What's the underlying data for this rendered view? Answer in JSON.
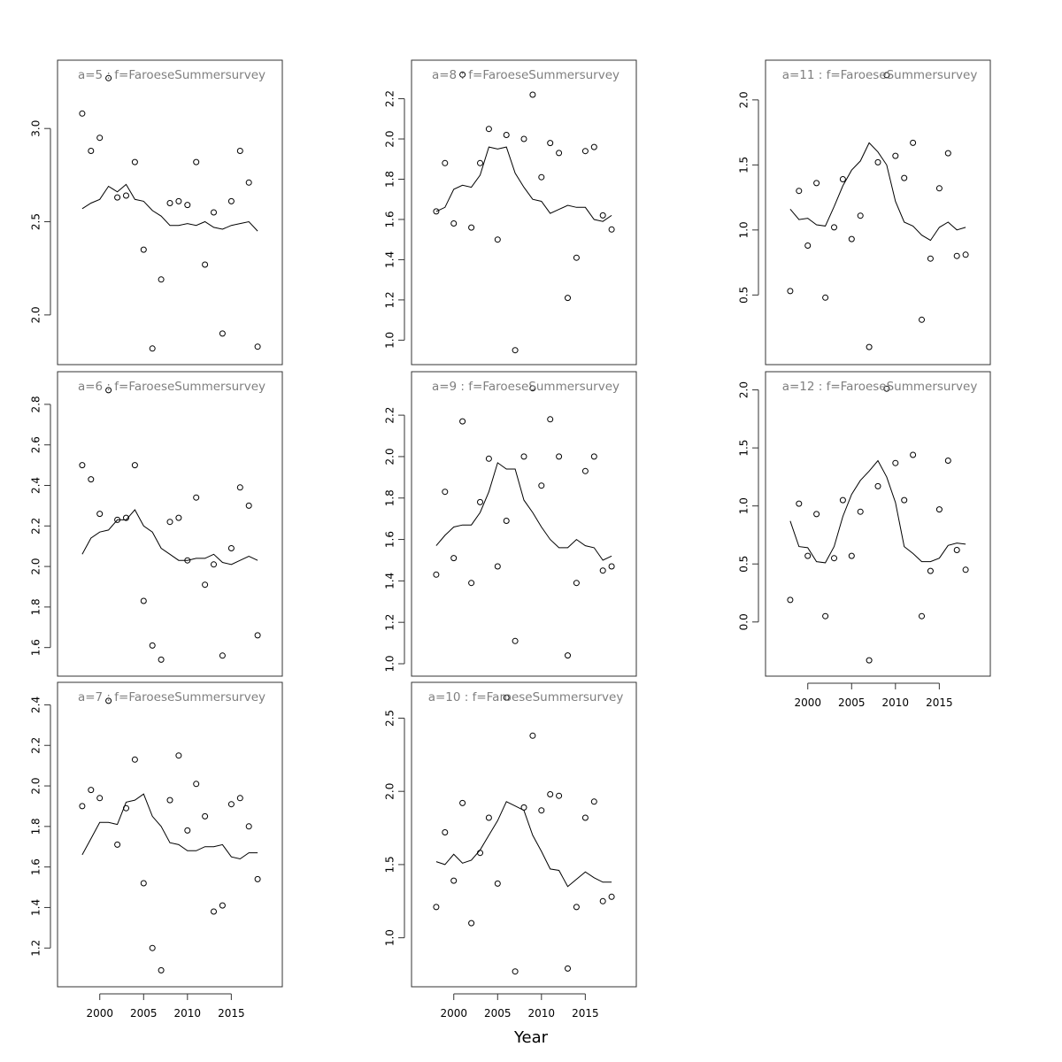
{
  "figure": {
    "xlabel": "Year"
  },
  "chart_data": [
    {
      "type": "scatter",
      "title": "a=5 : f=FaroeseSummersurvey",
      "x": [
        1998,
        1999,
        2000,
        2001,
        2002,
        2003,
        2004,
        2005,
        2006,
        2007,
        2008,
        2009,
        2010,
        2011,
        2012,
        2013,
        2014,
        2015,
        2016,
        2017,
        2018
      ],
      "observed": [
        3.08,
        2.88,
        2.95,
        3.27,
        2.63,
        2.64,
        2.82,
        2.35,
        1.82,
        2.19,
        2.6,
        2.61,
        2.59,
        2.82,
        2.27,
        2.55,
        1.9,
        2.61,
        2.88,
        2.71,
        1.83
      ],
      "fitted": [
        2.57,
        2.6,
        2.62,
        2.69,
        2.66,
        2.7,
        2.62,
        2.61,
        2.56,
        2.53,
        2.48,
        2.48,
        2.49,
        2.48,
        2.5,
        2.47,
        2.46,
        2.48,
        2.49,
        2.5,
        2.45
      ],
      "yticks": [
        2.0,
        2.5,
        3.0
      ],
      "ylim": [
        1.8,
        3.3
      ],
      "xticks": [
        2000,
        2005,
        2010,
        2015
      ],
      "xlim": [
        1997.2,
        2018.8
      ],
      "show_x_axis": false
    },
    {
      "type": "scatter",
      "title": "a=6 : f=FaroeseSummersurvey",
      "x": [
        1998,
        1999,
        2000,
        2001,
        2002,
        2003,
        2004,
        2005,
        2006,
        2007,
        2008,
        2009,
        2010,
        2011,
        2012,
        2013,
        2014,
        2015,
        2016,
        2017,
        2018
      ],
      "observed": [
        2.5,
        2.43,
        2.26,
        2.87,
        2.23,
        2.24,
        2.5,
        1.83,
        1.61,
        1.54,
        2.22,
        2.24,
        2.03,
        2.34,
        1.91,
        2.01,
        1.56,
        2.09,
        2.39,
        2.3,
        1.66
      ],
      "fitted": [
        2.06,
        2.14,
        2.17,
        2.18,
        2.23,
        2.23,
        2.28,
        2.2,
        2.17,
        2.09,
        2.06,
        2.03,
        2.03,
        2.04,
        2.04,
        2.06,
        2.02,
        2.01,
        2.03,
        2.05,
        2.03
      ],
      "yticks": [
        1.6,
        1.8,
        2.0,
        2.2,
        2.4,
        2.6,
        2.8
      ],
      "ylim": [
        1.52,
        2.9
      ],
      "xticks": [
        2000,
        2005,
        2010,
        2015
      ],
      "xlim": [
        1997.2,
        2018.8
      ],
      "show_x_axis": false
    },
    {
      "type": "scatter",
      "title": "a=7 : f=FaroeseSummersurvey",
      "x": [
        1998,
        1999,
        2000,
        2001,
        2002,
        2003,
        2004,
        2005,
        2006,
        2007,
        2008,
        2009,
        2010,
        2011,
        2012,
        2013,
        2014,
        2015,
        2016,
        2017,
        2018
      ],
      "observed": [
        1.9,
        1.98,
        1.94,
        2.42,
        1.71,
        1.89,
        2.13,
        1.52,
        1.2,
        1.09,
        1.93,
        2.15,
        1.78,
        2.01,
        1.85,
        1.38,
        1.41,
        1.91,
        1.94,
        1.8,
        1.54
      ],
      "fitted": [
        1.66,
        1.74,
        1.82,
        1.82,
        1.81,
        1.92,
        1.93,
        1.96,
        1.85,
        1.8,
        1.72,
        1.71,
        1.68,
        1.68,
        1.7,
        1.7,
        1.71,
        1.65,
        1.64,
        1.67,
        1.67
      ],
      "yticks": [
        1.2,
        1.4,
        1.6,
        1.8,
        2.0,
        2.2,
        2.4
      ],
      "ylim": [
        1.07,
        2.45
      ],
      "xticks": [
        2000,
        2005,
        2010,
        2015
      ],
      "xlim": [
        1997.2,
        2018.8
      ],
      "show_x_axis": true
    },
    {
      "type": "scatter",
      "title": "a=8 : f=FaroeseSummersurvey",
      "x": [
        1998,
        1999,
        2000,
        2001,
        2002,
        2003,
        2004,
        2005,
        2006,
        2007,
        2008,
        2009,
        2010,
        2011,
        2012,
        2013,
        2014,
        2015,
        2016,
        2017,
        2018
      ],
      "observed": [
        1.64,
        1.88,
        1.58,
        2.32,
        1.56,
        1.88,
        2.05,
        1.5,
        2.02,
        0.95,
        2.0,
        2.22,
        1.81,
        1.98,
        1.93,
        1.21,
        1.41,
        1.94,
        1.96,
        1.62,
        1.55
      ],
      "fitted": [
        1.64,
        1.66,
        1.75,
        1.77,
        1.76,
        1.82,
        1.96,
        1.95,
        1.96,
        1.83,
        1.76,
        1.7,
        1.69,
        1.63,
        1.65,
        1.67,
        1.66,
        1.66,
        1.6,
        1.59,
        1.62
      ],
      "yticks": [
        1.0,
        1.2,
        1.4,
        1.6,
        1.8,
        2.0,
        2.2
      ],
      "ylim": [
        0.94,
        2.33
      ],
      "xticks": [
        2000,
        2005,
        2010,
        2015
      ],
      "xlim": [
        1997.2,
        2018.8
      ],
      "show_x_axis": false
    },
    {
      "type": "scatter",
      "title": "a=9 : f=FaroeseSummersurvey",
      "x": [
        1998,
        1999,
        2000,
        2001,
        2002,
        2003,
        2004,
        2005,
        2006,
        2007,
        2008,
        2009,
        2010,
        2011,
        2012,
        2013,
        2014,
        2015,
        2016,
        2017,
        2018
      ],
      "observed": [
        1.43,
        1.83,
        1.51,
        2.17,
        1.39,
        1.78,
        1.99,
        1.47,
        1.69,
        1.11,
        2.0,
        2.33,
        1.86,
        2.18,
        2.0,
        1.04,
        1.39,
        1.93,
        2.0,
        1.45,
        1.47
      ],
      "fitted": [
        1.57,
        1.62,
        1.66,
        1.67,
        1.67,
        1.73,
        1.83,
        1.97,
        1.94,
        1.94,
        1.79,
        1.73,
        1.66,
        1.6,
        1.56,
        1.56,
        1.6,
        1.57,
        1.56,
        1.5,
        1.52
      ],
      "yticks": [
        1.0,
        1.2,
        1.4,
        1.6,
        1.8,
        2.0,
        2.2
      ],
      "ylim": [
        1.0,
        2.35
      ],
      "xticks": [
        2000,
        2005,
        2010,
        2015
      ],
      "xlim": [
        1997.2,
        2018.8
      ],
      "show_x_axis": false
    },
    {
      "type": "scatter",
      "title": "a=10 : f=FaroeseSummersurvey",
      "x": [
        1998,
        1999,
        2000,
        2001,
        2002,
        2003,
        2004,
        2005,
        2006,
        2007,
        2008,
        2009,
        2010,
        2011,
        2012,
        2013,
        2014,
        2015,
        2016,
        2017,
        2018
      ],
      "observed": [
        1.21,
        1.72,
        1.39,
        1.92,
        1.1,
        1.58,
        1.82,
        1.37,
        2.64,
        0.77,
        1.89,
        2.38,
        1.87,
        1.98,
        1.97,
        0.79,
        1.21,
        1.82,
        1.93,
        1.25,
        1.28
      ],
      "fitted": [
        1.52,
        1.5,
        1.57,
        1.51,
        1.53,
        1.6,
        1.7,
        1.8,
        1.93,
        1.9,
        1.87,
        1.7,
        1.59,
        1.47,
        1.46,
        1.35,
        1.4,
        1.45,
        1.41,
        1.38,
        1.38
      ],
      "yticks": [
        1.0,
        1.5,
        2.0,
        2.5
      ],
      "ylim": [
        0.75,
        2.66
      ],
      "xticks": [
        2000,
        2005,
        2010,
        2015
      ],
      "xlim": [
        1997.2,
        2018.8
      ],
      "show_x_axis": true
    },
    {
      "type": "scatter",
      "title": "a=11 : f=FaroeseSummersurvey",
      "x": [
        1998,
        1999,
        2000,
        2001,
        2002,
        2003,
        2004,
        2005,
        2006,
        2007,
        2008,
        2009,
        2010,
        2011,
        2012,
        2013,
        2014,
        2015,
        2016,
        2017,
        2018
      ],
      "observed": [
        0.53,
        1.3,
        0.88,
        1.36,
        0.48,
        1.02,
        1.39,
        0.93,
        1.11,
        0.1,
        1.52,
        2.19,
        1.57,
        1.4,
        1.67,
        0.31,
        0.78,
        1.32,
        1.59,
        0.8,
        0.81
      ],
      "fitted": [
        1.16,
        1.08,
        1.09,
        1.04,
        1.03,
        1.18,
        1.34,
        1.46,
        1.53,
        1.67,
        1.6,
        1.5,
        1.22,
        1.06,
        1.03,
        0.96,
        0.92,
        1.02,
        1.06,
        1.0,
        1.02
      ],
      "yticks": [
        0.5,
        1.0,
        1.5,
        2.0
      ],
      "ylim": [
        0.06,
        2.21
      ],
      "xticks": [
        2000,
        2005,
        2010,
        2015
      ],
      "xlim": [
        1997.2,
        2018.8
      ],
      "show_x_axis": false
    },
    {
      "type": "scatter",
      "title": "a=12 : f=FaroeseSummersurvey",
      "x": [
        1998,
        1999,
        2000,
        2001,
        2002,
        2003,
        2004,
        2005,
        2006,
        2007,
        2008,
        2009,
        2010,
        2011,
        2012,
        2013,
        2014,
        2015,
        2016,
        2017,
        2018
      ],
      "observed": [
        0.19,
        1.02,
        0.57,
        0.93,
        0.05,
        0.55,
        1.05,
        0.57,
        0.95,
        -0.33,
        1.17,
        2.01,
        1.37,
        1.05,
        1.44,
        0.05,
        0.44,
        0.97,
        1.39,
        0.62,
        0.45
      ],
      "fitted": [
        0.87,
        0.65,
        0.64,
        0.52,
        0.51,
        0.65,
        0.91,
        1.1,
        1.22,
        1.3,
        1.39,
        1.25,
        1.03,
        0.65,
        0.59,
        0.52,
        0.52,
        0.55,
        0.66,
        0.68,
        0.67
      ],
      "yticks": [
        0.0,
        0.5,
        1.0,
        1.5,
        2.0
      ],
      "ylim": [
        -0.36,
        2.05
      ],
      "xticks": [
        2000,
        2005,
        2010,
        2015
      ],
      "xlim": [
        1997.2,
        2018.8
      ],
      "show_x_axis": true
    }
  ]
}
